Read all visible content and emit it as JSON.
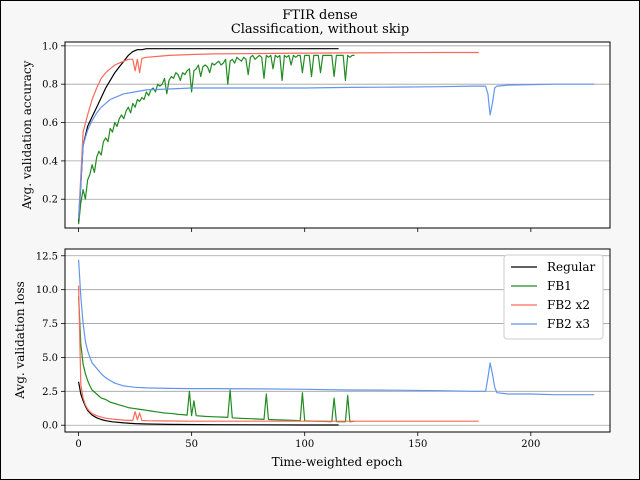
{
  "figure": {
    "title_line1": "FTIR dense",
    "title_line2": "Classification, without skip"
  },
  "colors": {
    "Regular": "#000000",
    "FB1": "#228b22",
    "FB2 x2": "#fa6a5a",
    "FB2 x3": "#6495ed"
  },
  "chart_data": [
    {
      "type": "line",
      "panel": "top",
      "ylabel": "Avg. validation accuracy",
      "xlim": [
        -6,
        235
      ],
      "ylim": [
        0.05,
        1.02
      ],
      "yticks": [
        0.2,
        0.4,
        0.6,
        0.8,
        1.0
      ],
      "ytick_labels": [
        "0.2",
        "0.4",
        "0.6",
        "0.8",
        "1.0"
      ],
      "xticks": [
        0,
        50,
        100,
        150,
        200
      ],
      "grid": "horizontal",
      "series": [
        {
          "name": "Regular",
          "x": [
            0,
            2,
            4,
            6,
            8,
            10,
            12,
            14,
            16,
            18,
            20,
            22,
            24,
            26,
            28,
            30,
            35,
            40,
            60,
            80,
            100,
            115
          ],
          "y": [
            0.08,
            0.48,
            0.58,
            0.63,
            0.68,
            0.73,
            0.78,
            0.82,
            0.86,
            0.89,
            0.92,
            0.95,
            0.97,
            0.98,
            0.98,
            0.985,
            0.985,
            0.985,
            0.985,
            0.985,
            0.985,
            0.985
          ]
        },
        {
          "name": "FB1",
          "x": [
            0,
            1,
            2,
            3,
            4,
            5,
            6,
            7,
            8,
            9,
            10,
            11,
            12,
            13,
            14,
            15,
            16,
            17,
            18,
            19,
            20,
            21,
            22,
            23,
            24,
            25,
            26,
            27,
            28,
            29,
            30,
            31,
            32,
            33,
            34,
            35,
            36,
            37,
            38,
            39,
            40,
            41,
            42,
            43,
            44,
            45,
            46,
            47,
            48,
            49,
            50,
            51,
            52,
            53,
            54,
            55,
            56,
            57,
            58,
            59,
            60,
            61,
            62,
            63,
            64,
            65,
            66,
            67,
            68,
            69,
            70,
            71,
            72,
            73,
            74,
            75,
            76,
            77,
            78,
            79,
            80,
            81,
            82,
            83,
            84,
            85,
            86,
            87,
            88,
            89,
            90,
            91,
            92,
            93,
            94,
            95,
            96,
            97,
            98,
            99,
            100,
            101,
            102,
            103,
            104,
            105,
            106,
            107,
            108,
            109,
            110,
            111,
            112,
            113,
            114,
            115,
            116,
            117,
            118,
            119,
            120,
            121,
            122
          ],
          "y": [
            0.07,
            0.18,
            0.25,
            0.2,
            0.3,
            0.33,
            0.38,
            0.34,
            0.42,
            0.45,
            0.43,
            0.5,
            0.52,
            0.5,
            0.57,
            0.55,
            0.6,
            0.58,
            0.62,
            0.64,
            0.62,
            0.66,
            0.68,
            0.65,
            0.7,
            0.68,
            0.72,
            0.71,
            0.73,
            0.72,
            0.76,
            0.74,
            0.77,
            0.78,
            0.76,
            0.8,
            0.79,
            0.8,
            0.83,
            0.75,
            0.82,
            0.84,
            0.83,
            0.86,
            0.85,
            0.82,
            0.86,
            0.85,
            0.87,
            0.88,
            0.76,
            0.87,
            0.88,
            0.9,
            0.84,
            0.89,
            0.9,
            0.89,
            0.86,
            0.91,
            0.9,
            0.91,
            0.92,
            0.9,
            0.91,
            0.93,
            0.8,
            0.92,
            0.93,
            0.91,
            0.94,
            0.93,
            0.92,
            0.94,
            0.93,
            0.85,
            0.94,
            0.95,
            0.93,
            0.94,
            0.95,
            0.94,
            0.83,
            0.95,
            0.94,
            0.95,
            0.88,
            0.95,
            0.94,
            0.95,
            0.82,
            0.95,
            0.94,
            0.95,
            0.9,
            0.95,
            0.94,
            0.95,
            0.95,
            0.86,
            0.95,
            0.95,
            0.95,
            0.84,
            0.95,
            0.95,
            0.95,
            0.86,
            0.95,
            0.95,
            0.95,
            0.95,
            0.95,
            0.84,
            0.95,
            0.95,
            0.95,
            0.95,
            0.82,
            0.95,
            0.94,
            0.95,
            0.95
          ]
        },
        {
          "name": "FB2 x2",
          "x": [
            0,
            2,
            4,
            6,
            8,
            10,
            12,
            14,
            16,
            18,
            20,
            22,
            24,
            25,
            26,
            27,
            28,
            30,
            35,
            40,
            50,
            60,
            80,
            100,
            120,
            140,
            160,
            177
          ],
          "y": [
            0.1,
            0.55,
            0.64,
            0.72,
            0.78,
            0.83,
            0.86,
            0.88,
            0.9,
            0.91,
            0.92,
            0.93,
            0.93,
            0.87,
            0.93,
            0.86,
            0.935,
            0.94,
            0.945,
            0.95,
            0.955,
            0.958,
            0.96,
            0.962,
            0.963,
            0.964,
            0.965,
            0.965
          ]
        },
        {
          "name": "FB2 x3",
          "x": [
            0,
            2,
            4,
            6,
            8,
            10,
            12,
            14,
            16,
            18,
            20,
            25,
            30,
            40,
            50,
            60,
            80,
            100,
            120,
            140,
            160,
            175,
            180,
            181,
            182,
            183,
            184,
            185,
            190,
            200,
            210,
            228
          ],
          "y": [
            0.1,
            0.48,
            0.56,
            0.61,
            0.65,
            0.68,
            0.7,
            0.72,
            0.73,
            0.74,
            0.75,
            0.76,
            0.77,
            0.775,
            0.78,
            0.78,
            0.78,
            0.78,
            0.783,
            0.785,
            0.787,
            0.79,
            0.79,
            0.75,
            0.64,
            0.7,
            0.78,
            0.79,
            0.795,
            0.798,
            0.8,
            0.8
          ]
        }
      ]
    },
    {
      "type": "line",
      "panel": "bottom",
      "ylabel": "Avg. validation loss",
      "xlabel": "Time-weighted epoch",
      "xlim": [
        -6,
        235
      ],
      "ylim": [
        -0.5,
        13.0
      ],
      "yticks": [
        0.0,
        2.5,
        5.0,
        7.5,
        10.0,
        12.5
      ],
      "ytick_labels": [
        "0.0",
        "2.5",
        "5.0",
        "7.5",
        "10.0",
        "12.5"
      ],
      "xticks": [
        0,
        50,
        100,
        150,
        200
      ],
      "xtick_labels": [
        "0",
        "50",
        "100",
        "150",
        "200"
      ],
      "grid": "horizontal",
      "legend": {
        "position": "top-right",
        "entries": [
          "Regular",
          "FB1",
          "FB2 x2",
          "FB2 x3"
        ]
      },
      "series": [
        {
          "name": "Regular",
          "x": [
            0,
            1,
            2,
            3,
            4,
            5,
            6,
            8,
            10,
            12,
            15,
            20,
            25,
            30,
            40,
            60,
            80,
            100,
            115
          ],
          "y": [
            3.2,
            2.3,
            1.8,
            1.4,
            1.1,
            0.9,
            0.75,
            0.55,
            0.42,
            0.33,
            0.25,
            0.17,
            0.12,
            0.09,
            0.06,
            0.04,
            0.03,
            0.02,
            0.02
          ]
        },
        {
          "name": "FB1",
          "x": [
            0,
            1,
            2,
            3,
            4,
            5,
            6,
            8,
            10,
            12,
            14,
            16,
            18,
            20,
            22,
            24,
            26,
            28,
            30,
            32,
            34,
            36,
            38,
            40,
            42,
            44,
            46,
            48,
            49,
            50,
            51,
            52,
            56,
            60,
            64,
            66,
            67,
            68,
            72,
            76,
            80,
            82,
            83,
            84,
            88,
            92,
            96,
            98,
            99,
            100,
            104,
            108,
            112,
            113,
            114,
            118,
            119,
            120,
            122
          ],
          "y": [
            9.5,
            6.0,
            4.5,
            3.8,
            3.3,
            2.9,
            2.6,
            2.3,
            2.0,
            1.9,
            1.7,
            1.6,
            1.5,
            1.4,
            1.3,
            1.25,
            1.2,
            1.15,
            1.1,
            1.05,
            1.0,
            0.95,
            0.9,
            0.88,
            0.85,
            0.8,
            0.78,
            0.75,
            2.5,
            0.7,
            1.8,
            0.7,
            0.65,
            0.62,
            0.6,
            0.58,
            2.6,
            0.55,
            0.5,
            0.48,
            0.45,
            0.43,
            2.3,
            0.42,
            0.4,
            0.38,
            0.35,
            0.33,
            2.4,
            0.32,
            0.3,
            0.28,
            0.27,
            2.0,
            0.26,
            0.25,
            2.2,
            0.25,
            0.3
          ]
        },
        {
          "name": "FB2 x2",
          "x": [
            0,
            1,
            2,
            3,
            4,
            5,
            6,
            8,
            10,
            12,
            15,
            20,
            24,
            25,
            26,
            27,
            28,
            30,
            35,
            40,
            50,
            60,
            80,
            100,
            120,
            140,
            160,
            177
          ],
          "y": [
            10.3,
            3.0,
            2.0,
            1.5,
            1.2,
            1.0,
            0.85,
            0.7,
            0.6,
            0.52,
            0.45,
            0.38,
            0.35,
            1.0,
            0.4,
            0.9,
            0.35,
            0.33,
            0.32,
            0.31,
            0.3,
            0.3,
            0.3,
            0.3,
            0.3,
            0.3,
            0.3,
            0.3
          ]
        },
        {
          "name": "FB2 x3",
          "x": [
            0,
            1,
            2,
            3,
            4,
            5,
            6,
            8,
            10,
            12,
            14,
            16,
            18,
            20,
            25,
            30,
            40,
            50,
            60,
            80,
            100,
            120,
            140,
            160,
            175,
            180,
            181,
            182,
            183,
            184,
            185,
            190,
            200,
            210,
            228
          ],
          "y": [
            12.2,
            9.5,
            7.5,
            6.2,
            5.5,
            5.0,
            4.6,
            4.2,
            3.8,
            3.5,
            3.3,
            3.1,
            3.0,
            2.9,
            2.8,
            2.75,
            2.72,
            2.7,
            2.7,
            2.68,
            2.65,
            2.6,
            2.58,
            2.55,
            2.5,
            2.5,
            3.5,
            4.6,
            3.8,
            2.8,
            2.4,
            2.3,
            2.3,
            2.25,
            2.25
          ]
        }
      ]
    }
  ]
}
